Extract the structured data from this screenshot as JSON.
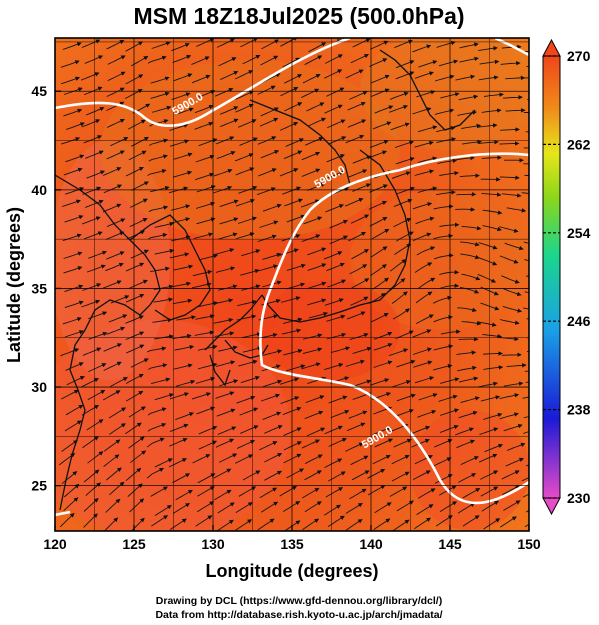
{
  "title": "MSM 18Z18Jul2025 (500.0hPa)",
  "x_axis": {
    "label": "Longitude (degrees)",
    "range": [
      120,
      150
    ],
    "ticks": [
      "120",
      "125",
      "130",
      "135",
      "140",
      "145",
      "150"
    ]
  },
  "y_axis": {
    "label": "Latitude  (degrees)",
    "range": [
      22.7,
      47.7
    ],
    "ticks": [
      "25",
      "30",
      "35",
      "40",
      "45"
    ]
  },
  "colorbar": {
    "range": [
      230,
      270
    ],
    "ticks": [
      "230",
      "238",
      "246",
      "254",
      "262",
      "270"
    ],
    "stops": [
      "#e64cc8",
      "#1a1ad6",
      "#1aa0e6",
      "#1ad68c",
      "#8cd61a",
      "#e6e61a",
      "#f08c1a",
      "#f0461a"
    ]
  },
  "contours": [
    {
      "label": "5900.0",
      "lon": 137.5,
      "lat": 40.5
    },
    {
      "label": "5900.0",
      "lon": 128.5,
      "lat": 44.2
    },
    {
      "label": "5900.0",
      "lon": 140.5,
      "lat": 27.3
    }
  ],
  "credits": {
    "line1": "Drawing by DCL (https://www.gfd-dennou.org/library/dcl/)",
    "line2": "Data from http://database.rish.kyoto-u.ac.jp/arch/jmadata/"
  },
  "chart_data": {
    "type": "heatmap",
    "variable": "temperature with wind streamlines and geopotential height contour",
    "level": "500.0hPa",
    "valid_time": "18Z18Jul2025",
    "x": {
      "label": "Longitude (degrees)",
      "range": [
        120,
        150
      ]
    },
    "y": {
      "label": "Latitude  (degrees)",
      "range": [
        22.7,
        47.7
      ]
    },
    "color_range": [
      230,
      270
    ],
    "contour_values": [
      5900.0
    ],
    "grid": true
  }
}
